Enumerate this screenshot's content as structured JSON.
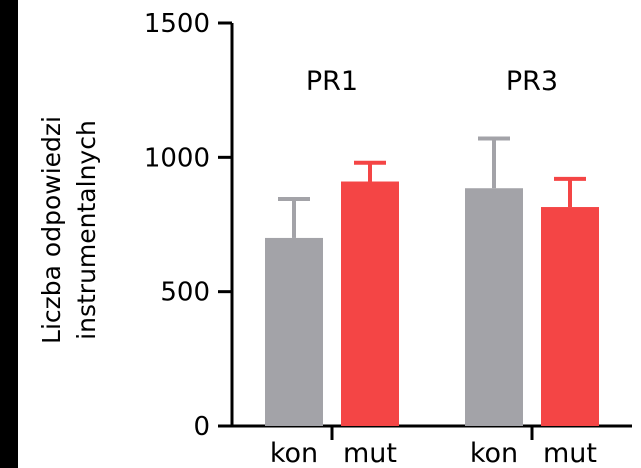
{
  "chart_data": {
    "type": "bar",
    "ylabel": [
      "Liczba odpowiedzi",
      "instrumentalnych"
    ],
    "ylim": [
      0,
      1500
    ],
    "yticks": [
      0,
      500,
      1000,
      1500
    ],
    "tick_labels": [
      "0",
      "500",
      "1000",
      "1500"
    ],
    "groups": [
      {
        "label": "PR1",
        "bars": [
          {
            "category": "kon",
            "value": 700,
            "error": 145,
            "color": "#a3a3a8"
          },
          {
            "category": "mut",
            "value": 910,
            "error": 70,
            "color": "#f44545"
          }
        ]
      },
      {
        "label": "PR3",
        "bars": [
          {
            "category": "kon",
            "value": 885,
            "error": 185,
            "color": "#a3a3a8"
          },
          {
            "category": "mut",
            "value": 815,
            "error": 105,
            "color": "#f44545"
          }
        ]
      }
    ]
  }
}
